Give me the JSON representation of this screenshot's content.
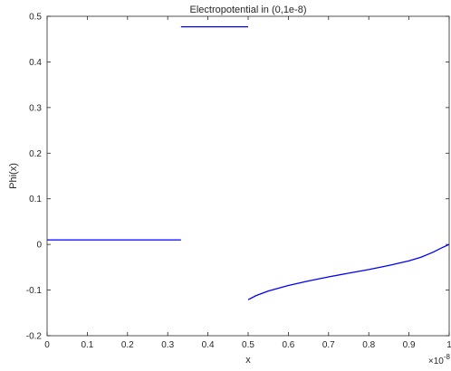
{
  "chart_data": {
    "type": "line",
    "title": "Electropotential in (0,1e-8)",
    "xlabel": "x",
    "ylabel": "Phi(x)",
    "x_exponent_label": "×10",
    "x_exponent": "-8",
    "xlim": [
      0,
      1
    ],
    "ylim": [
      -0.2,
      0.5
    ],
    "xticks": [
      0,
      0.1,
      0.2,
      0.3,
      0.4,
      0.5,
      0.6,
      0.7,
      0.8,
      0.9,
      1
    ],
    "xtick_labels": [
      "0",
      "0.1",
      "0.2",
      "0.3",
      "0.4",
      "0.5",
      "0.6",
      "0.7",
      "0.8",
      "0.9",
      "1"
    ],
    "yticks": [
      -0.2,
      -0.1,
      0,
      0.1,
      0.2,
      0.3,
      0.4,
      0.5
    ],
    "ytick_labels": [
      "-0.2",
      "-0.1",
      "0",
      "0.1",
      "0.2",
      "0.3",
      "0.4",
      "0.5"
    ],
    "grid": false,
    "line_color": "#0000ff",
    "series": [
      {
        "x": [
          0,
          0.333
        ],
        "y": [
          0.01,
          0.01
        ]
      },
      {
        "x": [
          0.333,
          0.5
        ],
        "y": [
          0.477,
          0.477
        ]
      },
      {
        "x": [
          0.5,
          0.52,
          0.55,
          0.6,
          0.65,
          0.7,
          0.75,
          0.8,
          0.85,
          0.9,
          0.93,
          0.96,
          0.98,
          1.0
        ],
        "y": [
          -0.121,
          -0.112,
          -0.102,
          -0.09,
          -0.08,
          -0.071,
          -0.063,
          -0.055,
          -0.046,
          -0.036,
          -0.028,
          -0.017,
          -0.008,
          0.0
        ]
      }
    ]
  }
}
